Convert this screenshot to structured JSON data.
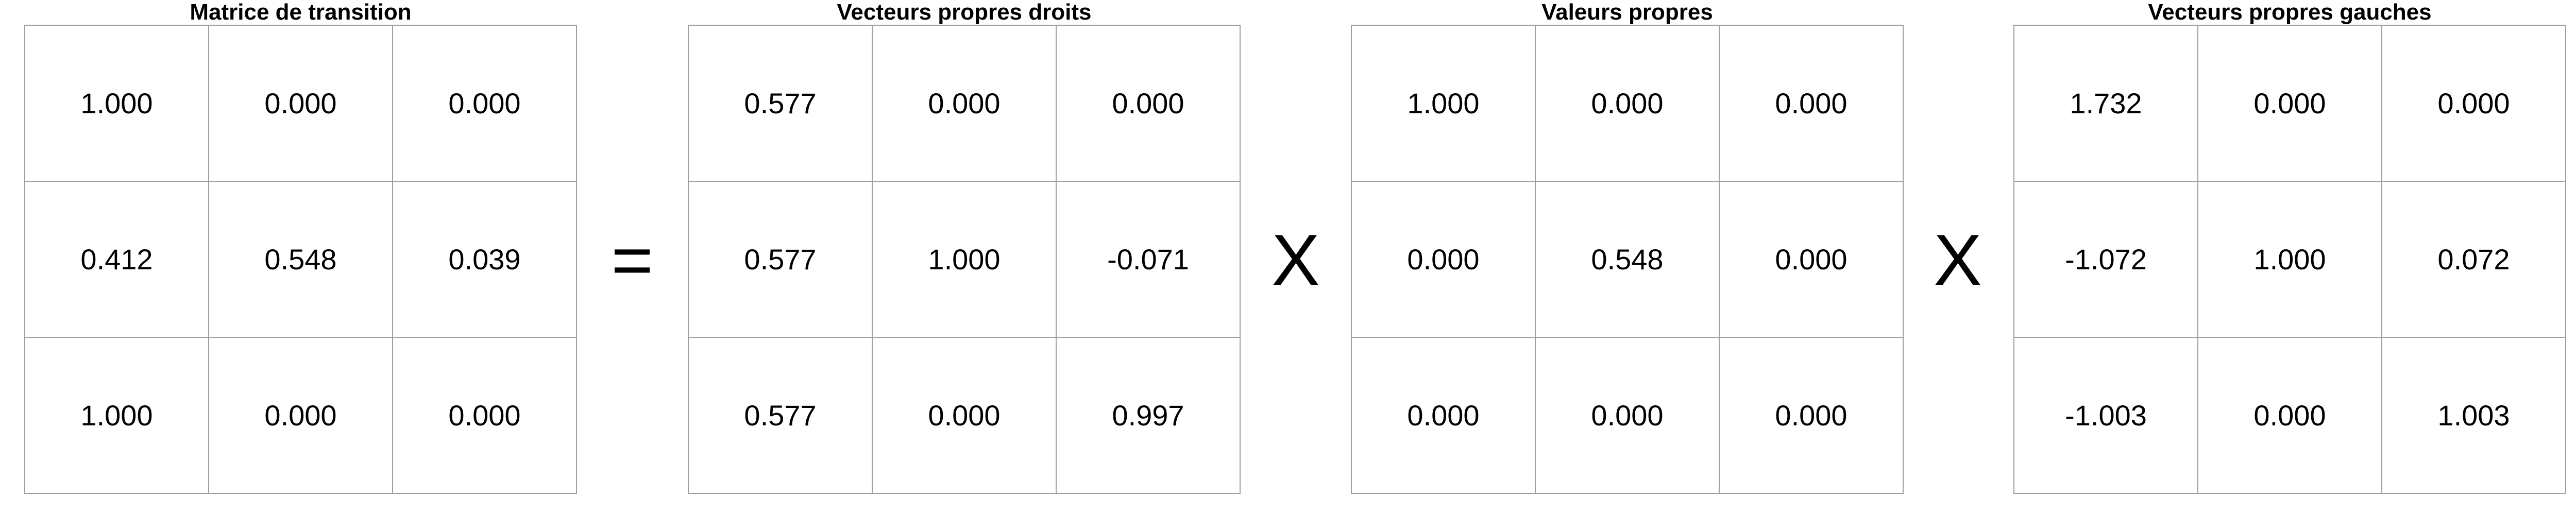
{
  "panels": [
    {
      "title": "Matrice de transition",
      "rows": [
        [
          "1.000",
          "0.000",
          "0.000"
        ],
        [
          "0.412",
          "0.548",
          "0.039"
        ],
        [
          "1.000",
          "0.000",
          "0.000"
        ]
      ]
    },
    {
      "title": "Vecteurs propres droits",
      "rows": [
        [
          "0.577",
          "0.000",
          "0.000"
        ],
        [
          "0.577",
          "1.000",
          "-0.071"
        ],
        [
          "0.577",
          "0.000",
          "0.997"
        ]
      ]
    },
    {
      "title": "Valeurs propres",
      "rows": [
        [
          "1.000",
          "0.000",
          "0.000"
        ],
        [
          "0.000",
          "0.548",
          "0.000"
        ],
        [
          "0.000",
          "0.000",
          "0.000"
        ]
      ]
    },
    {
      "title": "Vecteurs propres gauches",
      "rows": [
        [
          "1.732",
          "0.000",
          "0.000"
        ],
        [
          "-1.072",
          "1.000",
          "0.072"
        ],
        [
          "-1.003",
          "0.000",
          "1.003"
        ]
      ]
    }
  ],
  "operators": [
    "=",
    "X",
    "X"
  ],
  "colors": {
    "grid_line": "#a0a0a0",
    "text": "#000000",
    "background": "#ffffff"
  }
}
